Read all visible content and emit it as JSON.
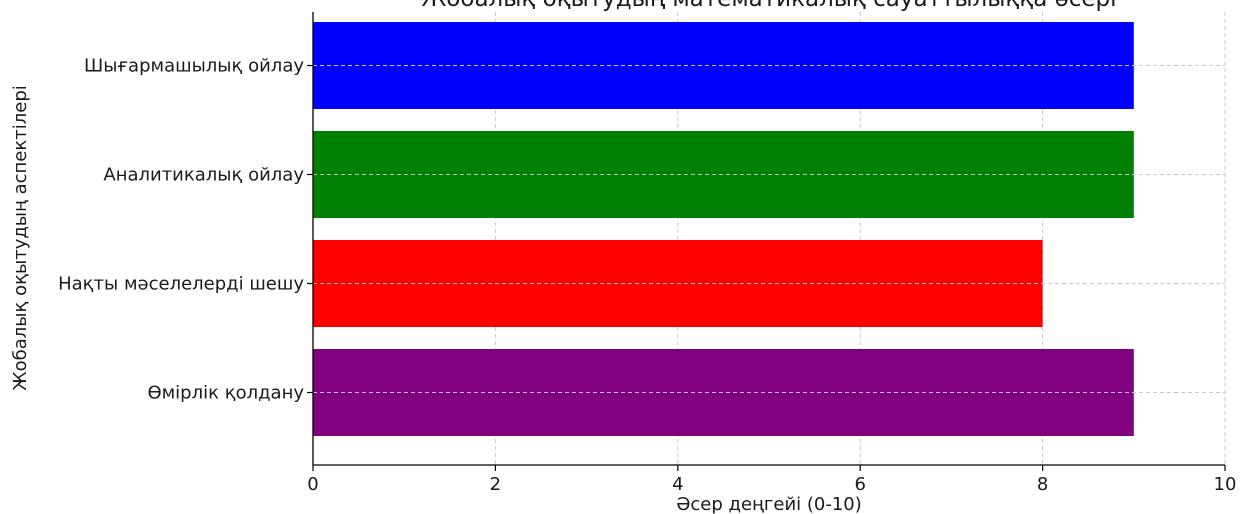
{
  "chart_data": {
    "type": "bar",
    "orientation": "horizontal",
    "title": "Жобалық оқытудың математикалық сауаттылыққа әсері",
    "xlabel": "Әсер деңгейі (0-10)",
    "ylabel": "Жобалық оқытудың аспектілері",
    "categories": [
      "Шығармашылық ойлау",
      "Аналитикалық ойлау",
      "Нақты мәселелерді шешу",
      "Өмірлік қолдану"
    ],
    "values": [
      9,
      9,
      8,
      9
    ],
    "colors": [
      "#0000ff",
      "#008000",
      "#ff0000",
      "#800080"
    ],
    "xlim": [
      0,
      10
    ],
    "xticks": [
      0,
      2,
      4,
      6,
      8,
      10
    ],
    "grid": true,
    "grid_style": "dashed"
  }
}
